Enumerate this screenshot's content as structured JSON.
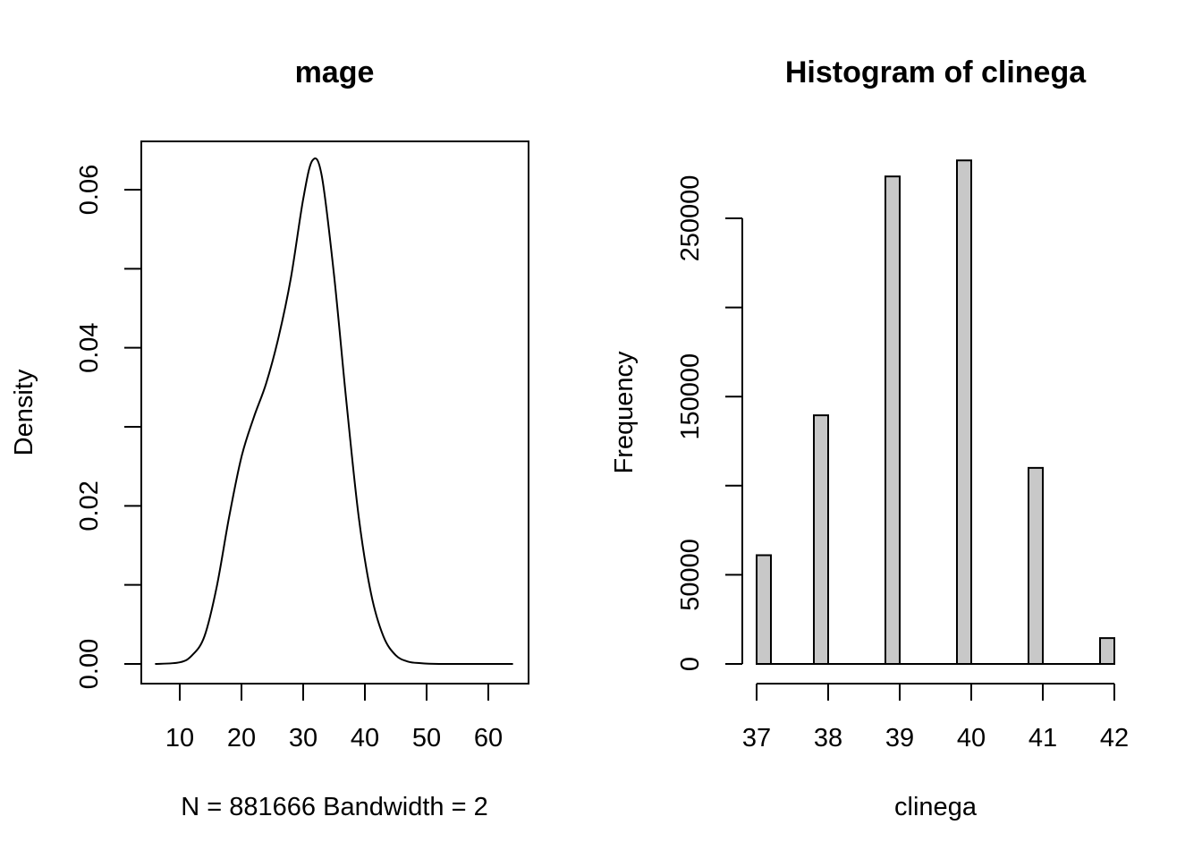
{
  "chart_data": [
    {
      "type": "line",
      "title": "mage",
      "xlabel": "N = 881666   Bandwidth = 2",
      "ylabel": "Density",
      "xlim": [
        6,
        64
      ],
      "ylim": [
        0,
        0.064
      ],
      "xticks": [
        "10",
        "20",
        "30",
        "40",
        "50",
        "60"
      ],
      "yticks": [
        "0.00",
        "0.02",
        "0.04",
        "0.06"
      ],
      "x": [
        6,
        10,
        12,
        14,
        16,
        18,
        20,
        22,
        24,
        26,
        28,
        30,
        31.5,
        33,
        35,
        37,
        39,
        41,
        43,
        45,
        47,
        49,
        52,
        56,
        64
      ],
      "y": [
        0,
        0.0002,
        0.0011,
        0.0035,
        0.0098,
        0.0186,
        0.0262,
        0.0312,
        0.0355,
        0.0413,
        0.0488,
        0.0588,
        0.0637,
        0.0618,
        0.0492,
        0.0332,
        0.0186,
        0.0089,
        0.0035,
        0.0011,
        0.0003,
        0.0001,
        0,
        0,
        0
      ]
    },
    {
      "type": "bar",
      "title": "Histogram of clinega",
      "xlabel": "clinega",
      "ylabel": "Frequency",
      "xlim": [
        37,
        42
      ],
      "ylim": [
        0,
        282000
      ],
      "xticks": [
        "37",
        "38",
        "39",
        "40",
        "41",
        "42"
      ],
      "yticks": [
        "0",
        "50000",
        "150000",
        "250000"
      ],
      "bin_width": 0.2,
      "bins_start": [
        37.0,
        37.8,
        38.8,
        39.8,
        40.8,
        41.8
      ],
      "values": [
        61000,
        139500,
        273500,
        282500,
        110000,
        14500
      ]
    }
  ]
}
